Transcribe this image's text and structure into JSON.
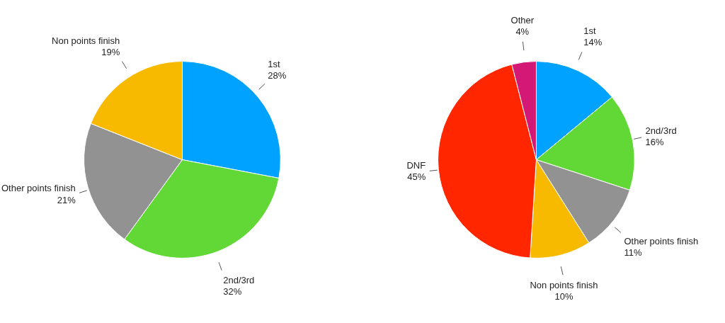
{
  "chart_data": [
    {
      "type": "pie",
      "categories": [
        "1st",
        "2nd/3rd",
        "Other points finish",
        "Non points finish"
      ],
      "values": [
        28,
        32,
        21,
        19
      ],
      "value_labels": [
        "28%",
        "32%",
        "21%",
        "19%"
      ],
      "colors": [
        "#00a2ff",
        "#61d836",
        "#929292",
        "#f8ba00"
      ],
      "legend": false
    },
    {
      "type": "pie",
      "categories": [
        "1st",
        "2nd/3rd",
        "Other points finish",
        "Non points finish",
        "DNF",
        "Other"
      ],
      "values": [
        14,
        16,
        11,
        10,
        45,
        4
      ],
      "value_labels": [
        "14%",
        "16%",
        "11%",
        "10%",
        "45%",
        "4%"
      ],
      "colors": [
        "#00a2ff",
        "#61d836",
        "#929292",
        "#f8ba00",
        "#ff2600",
        "#d31876"
      ],
      "legend": false
    }
  ]
}
